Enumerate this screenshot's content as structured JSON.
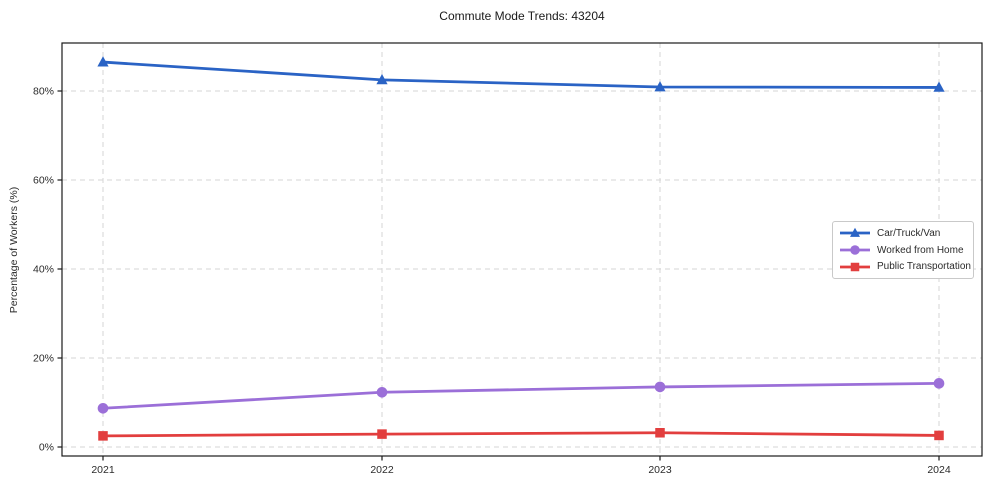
{
  "title": "Commute Mode Trends: 43204",
  "chart_data": {
    "type": "line",
    "title": "Commute Mode Trends: 43204",
    "xlabel": "",
    "ylabel": "Percentage of Workers (%)",
    "x": [
      "2021",
      "2022",
      "2023",
      "2024"
    ],
    "series": [
      {
        "name": "Car/Truck/Van",
        "marker": "triangle",
        "color": "#2a63c5",
        "values": [
          86.5,
          82.5,
          80.9,
          80.8
        ]
      },
      {
        "name": "Worked from Home",
        "marker": "circle",
        "color": "#9b6fd8",
        "values": [
          8.7,
          12.3,
          13.5,
          14.3
        ]
      },
      {
        "name": "Public Transportation",
        "marker": "square",
        "color": "#e23e3e",
        "values": [
          2.5,
          2.9,
          3.2,
          2.6
        ]
      }
    ],
    "yticks": [
      0,
      20,
      40,
      60,
      80
    ],
    "ytick_labels": [
      "0%",
      "20%",
      "40%",
      "60%",
      "80%"
    ],
    "ylim": [
      -2,
      90.8
    ],
    "grid": true,
    "grid_style": "dashed",
    "legend_position": "center-right",
    "grid_color": "#d6d6d6",
    "axis_color": "#1a1a1a",
    "text_color": "#2b2b2b",
    "background_color": "#ffffff"
  }
}
